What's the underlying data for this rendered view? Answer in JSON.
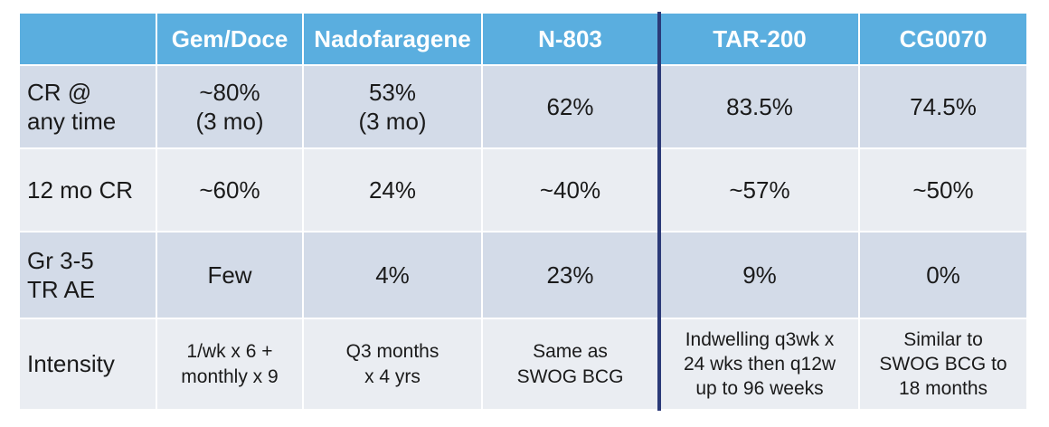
{
  "table": {
    "headers": [
      "",
      "Gem/Doce",
      "Nadofaragene",
      "N-803",
      "TAR-200",
      "CG0070"
    ],
    "rows": [
      {
        "label": [
          "CR @",
          "any time"
        ],
        "cells": [
          [
            "~80%",
            "(3 mo)"
          ],
          [
            "53%",
            "(3 mo)"
          ],
          [
            "62%"
          ],
          [
            "83.5%"
          ],
          [
            "74.5%"
          ]
        ]
      },
      {
        "label": [
          "12 mo CR"
        ],
        "cells": [
          [
            "~60%"
          ],
          [
            "24%"
          ],
          [
            "~40%"
          ],
          [
            "~57%"
          ],
          [
            "~50%"
          ]
        ]
      },
      {
        "label": [
          "Gr 3-5",
          "TR AE"
        ],
        "cells": [
          [
            "Few"
          ],
          [
            "4%"
          ],
          [
            "23%"
          ],
          [
            "9%"
          ],
          [
            "0%"
          ]
        ]
      },
      {
        "label": [
          "Intensity"
        ],
        "cells": [
          [
            "1/wk x 6 +",
            "monthly x 9"
          ],
          [
            "Q3 months",
            "x 4 yrs"
          ],
          [
            "Same as",
            "SWOG BCG"
          ],
          [
            "Indwelling q3wk x",
            "24 wks then q12w",
            "up to 96 weeks"
          ],
          [
            "Similar to",
            "SWOG BCG to",
            "18 months"
          ]
        ]
      }
    ]
  },
  "colors": {
    "header_bg": "#5aaedf",
    "row_dark": "#d3dbe8",
    "row_light": "#eaedf2",
    "divider": "#2b3a78"
  }
}
